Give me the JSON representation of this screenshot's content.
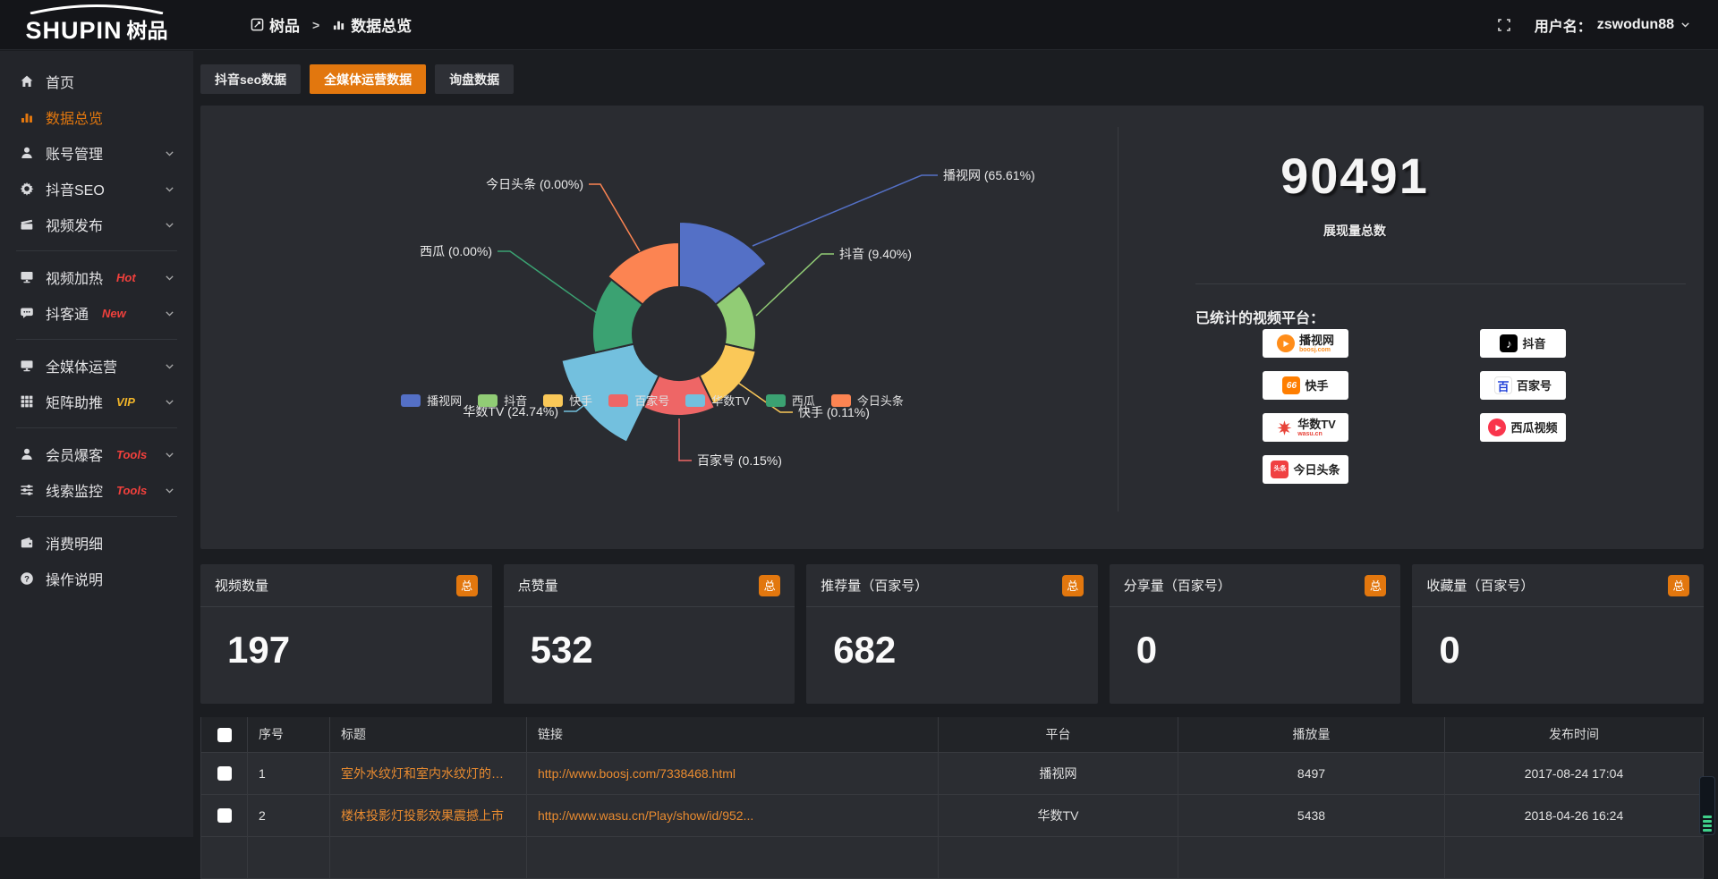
{
  "topbar": {
    "logo_text": "SHUPIN",
    "logo_suffix": "树品",
    "breadcrumb": [
      {
        "label": "树品"
      },
      {
        "label": "数据总览"
      }
    ],
    "username_label": "用户名：",
    "username": "zswodun88"
  },
  "sidebar": {
    "items": [
      {
        "key": "home",
        "icon": "home",
        "label": "首页"
      },
      {
        "key": "data-overview",
        "icon": "bar-chart",
        "label": "数据总览",
        "active": true
      },
      {
        "key": "account-manage",
        "icon": "user",
        "label": "账号管理",
        "expandable": true
      },
      {
        "key": "douyin-seo",
        "icon": "gear",
        "label": "抖音SEO",
        "expandable": true
      },
      {
        "key": "video-publish",
        "icon": "clapper",
        "label": "视频发布",
        "expandable": true,
        "divider_after": true
      },
      {
        "key": "video-heating",
        "icon": "screen",
        "label": "视频加热",
        "tag": "Hot",
        "tag_color": "#f1403c",
        "expandable": true
      },
      {
        "key": "douketong",
        "icon": "chat",
        "label": "抖客通",
        "tag": "New",
        "tag_color": "#f1403c",
        "expandable": true,
        "divider_after": true
      },
      {
        "key": "omni-media",
        "icon": "monitor",
        "label": "全媒体运营",
        "expandable": true
      },
      {
        "key": "matrix-boost",
        "icon": "grid",
        "label": "矩阵助推",
        "tag": "VIP",
        "tag_color": "#f0b429",
        "expandable": true,
        "divider_after": true
      },
      {
        "key": "member-baoke",
        "icon": "person",
        "label": "会员爆客",
        "tag": "Tools",
        "tag_color": "#f1403c",
        "expandable": true
      },
      {
        "key": "clue-monitor",
        "icon": "sliders",
        "label": "线索监控",
        "tag": "Tools",
        "tag_color": "#f1403c",
        "expandable": true,
        "divider_after": true
      },
      {
        "key": "consume-detail",
        "icon": "wallet",
        "label": "消费明细"
      },
      {
        "key": "operation-guide",
        "icon": "question",
        "label": "操作说明"
      }
    ]
  },
  "tabs": [
    {
      "label": "抖音seo数据",
      "active": false
    },
    {
      "label": "全媒体运营数据",
      "active": true
    },
    {
      "label": "询盘数据",
      "active": false
    }
  ],
  "chart_data": {
    "type": "pie",
    "rose": true,
    "legend_position": "bottom",
    "items": [
      {
        "name": "播视网",
        "percent": 65.61,
        "color": "#5470c6"
      },
      {
        "name": "抖音",
        "percent": 9.4,
        "color": "#91cc75"
      },
      {
        "name": "快手",
        "percent": 0.11,
        "color": "#fac858"
      },
      {
        "name": "百家号",
        "percent": 0.15,
        "color": "#ee6666"
      },
      {
        "name": "华数TV",
        "percent": 24.74,
        "color": "#73c0de"
      },
      {
        "name": "西瓜",
        "percent": 0.0,
        "color": "#3ba272"
      },
      {
        "name": "今日头条",
        "percent": 0.0,
        "color": "#fc8452"
      }
    ]
  },
  "summary": {
    "total": "90491",
    "total_label": "展现量总数",
    "platforms_label": "已统计的视频平台：",
    "platform_columns": [
      [
        {
          "name": "播视网",
          "icon": "boosj",
          "sub": "boosj.com",
          "sub_color": "#ff8d1a"
        },
        {
          "name": "快手",
          "icon": "kuaishou"
        },
        {
          "name": "华数TV",
          "icon": "wasu",
          "sub": "wasu.cn",
          "sub_color": "#e8443a"
        },
        {
          "name": "今日头条",
          "icon": "toutiao"
        }
      ],
      [
        {
          "name": "抖音",
          "icon": "douyin"
        },
        {
          "name": "百家号",
          "icon": "baijia"
        },
        {
          "name": "西瓜视频",
          "icon": "xigua"
        }
      ]
    ]
  },
  "stat_cards": [
    {
      "title": "视频数量",
      "badge": "总",
      "value": "197"
    },
    {
      "title": "点赞量",
      "badge": "总",
      "value": "532"
    },
    {
      "title": "推荐量（百家号）",
      "badge": "总",
      "value": "682"
    },
    {
      "title": "分享量（百家号）",
      "badge": "总",
      "value": "0"
    },
    {
      "title": "收藏量（百家号）",
      "badge": "总",
      "value": "0"
    }
  ],
  "table": {
    "headers": [
      "序号",
      "标题",
      "链接",
      "平台",
      "播放量",
      "发布时间"
    ],
    "rows": [
      {
        "index": "1",
        "title": "室外水纹灯和室内水纹灯的区别和简介",
        "link": "http://www.boosj.com/7338468.html",
        "platform": "播视网",
        "plays": "8497",
        "time": "2017-08-24 17:04"
      },
      {
        "index": "2",
        "title": "楼体投影灯投影效果震撼上市",
        "link": "http://www.wasu.cn/Play/show/id/952...",
        "platform": "华数TV",
        "plays": "5438",
        "time": "2018-04-26 16:24"
      },
      {
        "index": "",
        "title": "",
        "link": "",
        "platform": "",
        "plays": "",
        "time": ""
      }
    ]
  },
  "colors": {
    "accent_orange": "#e2770e",
    "link_orange": "#e98b30",
    "tag_red": "#f1403c",
    "tag_yellow": "#f0b429"
  }
}
